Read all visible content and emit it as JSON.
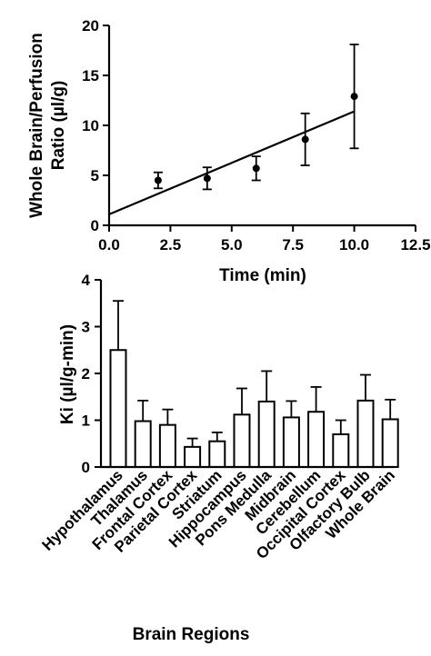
{
  "chart_data": [
    {
      "type": "scatter",
      "xlabel": "Time (min)",
      "ylabel_lines": [
        "Whole Brain/Perfusion",
        "Ratio (µl/g)"
      ],
      "xlim": [
        0,
        12.5
      ],
      "ylim": [
        0,
        20
      ],
      "x_ticks": [
        "0.0",
        "2.5",
        "5.0",
        "7.5",
        "10.0",
        "12.5"
      ],
      "x_tick_values": [
        0,
        2.5,
        5,
        7.5,
        10,
        12.5
      ],
      "y_ticks": [
        "0",
        "5",
        "10",
        "15",
        "20"
      ],
      "y_tick_values": [
        0,
        5,
        10,
        15,
        20
      ],
      "grid": false,
      "points": [
        {
          "x": 2,
          "y": 4.5,
          "err": 0.8
        },
        {
          "x": 4,
          "y": 4.7,
          "err": 1.1
        },
        {
          "x": 6,
          "y": 5.7,
          "err": 1.2
        },
        {
          "x": 8,
          "y": 8.6,
          "err": 2.6
        },
        {
          "x": 10,
          "y": 12.9,
          "err": 5.2
        }
      ],
      "fit_line": {
        "x": [
          0,
          10
        ],
        "y": [
          1.1,
          11.4
        ]
      }
    },
    {
      "type": "bar",
      "xlabel": "Brain Regions",
      "ylabel": "Ki (µl/g-min)",
      "ylim": [
        0,
        4
      ],
      "y_ticks": [
        "0",
        "1",
        "2",
        "3",
        "4"
      ],
      "y_tick_values": [
        0,
        1,
        2,
        3,
        4
      ],
      "grid": false,
      "categories": [
        "Hypothalamus",
        "Thalamus",
        "Frontal Cortex",
        "Parietal Cortex",
        "Striatum",
        "Hippocampus",
        "Pons Medulla",
        "Midbrain",
        "Cerebellum",
        "Occipital Cortex",
        "Olfactory Bulb",
        "Whole Brain"
      ],
      "values": [
        2.5,
        0.98,
        0.9,
        0.43,
        0.55,
        1.12,
        1.4,
        1.06,
        1.18,
        0.7,
        1.42,
        1.02
      ],
      "errors": [
        1.05,
        0.44,
        0.33,
        0.18,
        0.19,
        0.56,
        0.65,
        0.35,
        0.53,
        0.3,
        0.55,
        0.42
      ]
    }
  ]
}
